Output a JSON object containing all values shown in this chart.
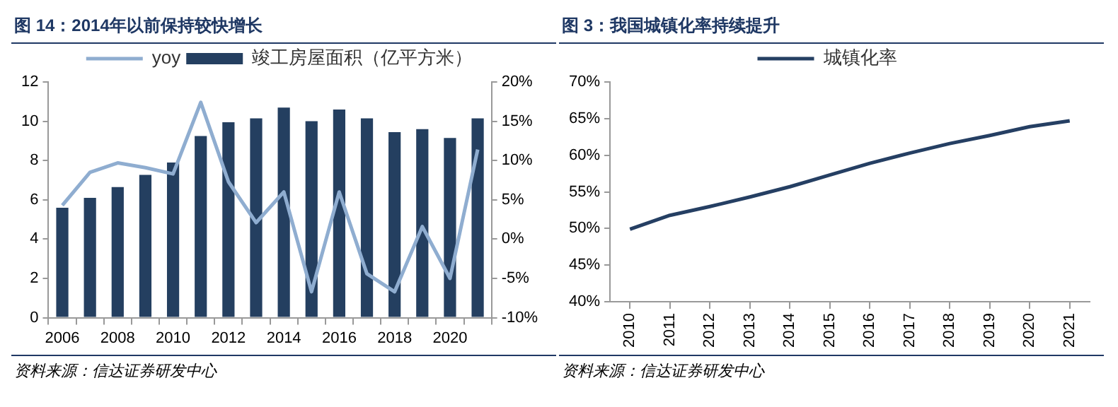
{
  "chart_data": [
    {
      "type": "bar",
      "title": "图 14：2014年以前保持较快增长",
      "categories": [
        "2006",
        null,
        "2008",
        null,
        "2010",
        null,
        "2012",
        null,
        "2014",
        null,
        "2016",
        null,
        "2018",
        null,
        "2020",
        null
      ],
      "series": [
        {
          "name": "竣工房屋面积（亿平方米）",
          "type": "bar",
          "color": "#243f60",
          "values": [
            5.6,
            6.1,
            6.65,
            7.27,
            7.9,
            9.25,
            9.95,
            10.15,
            10.7,
            10.0,
            10.6,
            10.15,
            9.45,
            9.6,
            9.15,
            10.15
          ]
        },
        {
          "name": "yoy",
          "type": "line",
          "axis": "y2",
          "color": "#8fadd0",
          "values": [
            4.3,
            8.5,
            9.7,
            9.1,
            8.3,
            17.4,
            7.3,
            2.1,
            6.0,
            -6.7,
            6.0,
            -4.4,
            -6.7,
            1.6,
            -5.0,
            11.4
          ]
        }
      ],
      "ylim": [
        0,
        12
      ],
      "yticks": [
        0,
        2,
        4,
        6,
        8,
        10,
        12
      ],
      "y2lim": [
        -10,
        20
      ],
      "y2ticks": [
        {
          "value": -10,
          "label": "-10%"
        },
        {
          "value": -5,
          "label": "-5%"
        },
        {
          "value": 0,
          "label": "0%"
        },
        {
          "value": 5,
          "label": "5%"
        },
        {
          "value": 10,
          "label": "10%"
        },
        {
          "value": 15,
          "label": "15%"
        },
        {
          "value": 20,
          "label": "20%"
        }
      ],
      "grid": false,
      "legend": "top",
      "marker": "none",
      "annotations": [
        "资料来源：信达证券研发中心"
      ]
    },
    {
      "type": "line",
      "title": "图 3：我国城镇化率持续提升",
      "categories": [
        "2010",
        "2011",
        "2012",
        "2013",
        "2014",
        "2015",
        "2016",
        "2017",
        "2018",
        "2019",
        "2020",
        "2021"
      ],
      "series": [
        {
          "name": "城镇化率",
          "color": "#253f63",
          "values": [
            49.9,
            51.8,
            53.0,
            54.3,
            55.7,
            57.3,
            58.9,
            60.3,
            61.6,
            62.7,
            63.9,
            64.7
          ]
        }
      ],
      "ylim": [
        40,
        70
      ],
      "yticks": [
        {
          "value": 40,
          "label": "40%"
        },
        {
          "value": 45,
          "label": "45%"
        },
        {
          "value": 50,
          "label": "50%"
        },
        {
          "value": 55,
          "label": "55%"
        },
        {
          "value": 60,
          "label": "60%"
        },
        {
          "value": 65,
          "label": "65%"
        },
        {
          "value": 70,
          "label": "70%"
        }
      ],
      "grid": false,
      "legend": "top",
      "marker": "none",
      "annotations": [
        "资料来源：信达证券研发中心"
      ]
    }
  ]
}
